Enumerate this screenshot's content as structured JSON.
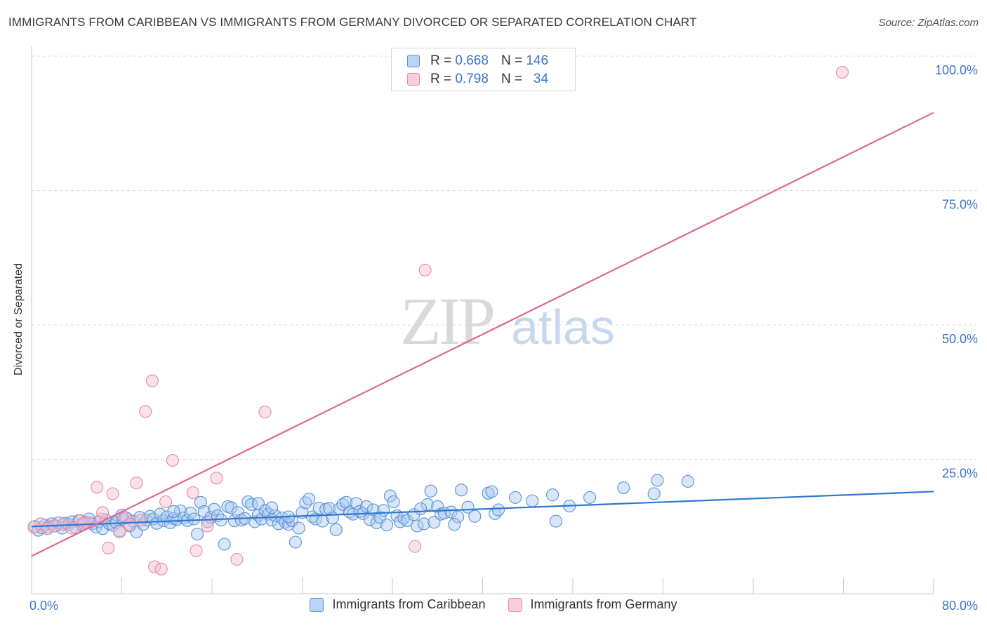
{
  "title": "IMMIGRANTS FROM CARIBBEAN VS IMMIGRANTS FROM GERMANY DIVORCED OR SEPARATED CORRELATION CHART",
  "source": "Source: ZipAtlas.com",
  "watermark": {
    "zip": "ZIP",
    "atlas": "atlas"
  },
  "colors": {
    "blue_fill": "#a9c8f0",
    "blue_stroke": "#5b93d6",
    "blue_line": "#2f78d0",
    "pink_fill": "#f6bfd0",
    "pink_stroke": "#e889a8",
    "pink_line": "#e0688f",
    "axis_text": "#3b73c8"
  },
  "legend_top": [
    {
      "r_label": "R =",
      "r_value": "0.668",
      "n_label": "N =",
      "n_value": "146"
    },
    {
      "r_label": "R =",
      "r_value": "0.798",
      "n_label": "N =",
      "n_value": "34"
    }
  ],
  "legend_bottom": [
    {
      "label": "Immigrants from Caribbean"
    },
    {
      "label": "Immigrants from Germany"
    }
  ],
  "chart_data": {
    "type": "scatter",
    "title": "IMMIGRANTS FROM CARIBBEAN VS IMMIGRANTS FROM GERMANY DIVORCED OR SEPARATED CORRELATION CHART",
    "xlabel": "",
    "ylabel": "Divorced or Separated",
    "xlim": [
      0,
      80
    ],
    "ylim": [
      0,
      100
    ],
    "x_tick_labels": [
      "0.0%",
      "80.0%"
    ],
    "y_ticks": [
      25,
      50,
      75,
      100
    ],
    "y_tick_labels": [
      "25.0%",
      "50.0%",
      "75.0%",
      "100.0%"
    ],
    "grid": "horizontal dashed",
    "legend_position": "top-center",
    "series": [
      {
        "name": "Immigrants from Caribbean",
        "color": "#a9c8f0",
        "trend": {
          "x": [
            0,
            80
          ],
          "y": [
            12.5,
            19.0
          ]
        },
        "points": [
          [
            0.3,
            12.5
          ],
          [
            0.6,
            11.8
          ],
          [
            0.9,
            12.3
          ],
          [
            1.2,
            12.8
          ],
          [
            1.5,
            12.4
          ],
          [
            1.8,
            13.0
          ],
          [
            2.1,
            12.6
          ],
          [
            2.4,
            13.2
          ],
          [
            2.7,
            12.2
          ],
          [
            3.0,
            13.1
          ],
          [
            3.3,
            12.9
          ],
          [
            3.6,
            13.4
          ],
          [
            3.9,
            12.3
          ],
          [
            4.2,
            13.6
          ],
          [
            4.5,
            12.8
          ],
          [
            4.8,
            13.3
          ],
          [
            5.1,
            13.9
          ],
          [
            5.4,
            13.0
          ],
          [
            5.7,
            12.4
          ],
          [
            6.0,
            13.4
          ],
          [
            6.3,
            12.1
          ],
          [
            6.6,
            13.7
          ],
          [
            6.9,
            13.0
          ],
          [
            7.2,
            12.7
          ],
          [
            7.5,
            13.2
          ],
          [
            7.8,
            11.7
          ],
          [
            8.1,
            13.9
          ],
          [
            8.4,
            14.1
          ],
          [
            8.7,
            12.6
          ],
          [
            9.0,
            13.5
          ],
          [
            9.3,
            11.5
          ],
          [
            9.6,
            14.2
          ],
          [
            9.9,
            12.9
          ],
          [
            10.2,
            13.7
          ],
          [
            10.5,
            14.4
          ],
          [
            10.8,
            13.9
          ],
          [
            11.1,
            13.1
          ],
          [
            11.4,
            14.8
          ],
          [
            11.7,
            13.6
          ],
          [
            12.0,
            14.3
          ],
          [
            12.3,
            13.2
          ],
          [
            12.6,
            14.0
          ],
          [
            12.9,
            13.8
          ],
          [
            13.2,
            15.4
          ],
          [
            13.5,
            14.1
          ],
          [
            13.8,
            13.6
          ],
          [
            14.1,
            15.0
          ],
          [
            14.4,
            13.9
          ],
          [
            14.7,
            11.1
          ],
          [
            15.0,
            17.0
          ],
          [
            15.3,
            15.3
          ],
          [
            15.6,
            13.4
          ],
          [
            15.9,
            14.2
          ],
          [
            16.2,
            15.7
          ],
          [
            16.5,
            14.5
          ],
          [
            16.8,
            13.7
          ],
          [
            17.1,
            9.2
          ],
          [
            17.4,
            16.2
          ],
          [
            17.7,
            16.0
          ],
          [
            18.0,
            13.6
          ],
          [
            18.3,
            15.1
          ],
          [
            18.6,
            13.7
          ],
          [
            18.9,
            14.0
          ],
          [
            19.2,
            17.1
          ],
          [
            19.5,
            16.6
          ],
          [
            19.8,
            13.4
          ],
          [
            20.1,
            14.6
          ],
          [
            20.4,
            13.9
          ],
          [
            20.7,
            15.5
          ],
          [
            21.0,
            14.8
          ],
          [
            21.3,
            13.7
          ],
          [
            21.6,
            14.5
          ],
          [
            21.9,
            13.0
          ],
          [
            22.2,
            14.1
          ],
          [
            22.5,
            13.3
          ],
          [
            22.8,
            12.9
          ],
          [
            23.1,
            13.6
          ],
          [
            23.4,
            9.6
          ],
          [
            23.7,
            12.2
          ],
          [
            24.0,
            15.1
          ],
          [
            24.3,
            16.9
          ],
          [
            24.6,
            17.6
          ],
          [
            24.9,
            14.3
          ],
          [
            25.2,
            13.9
          ],
          [
            25.5,
            15.9
          ],
          [
            25.8,
            13.5
          ],
          [
            26.1,
            15.7
          ],
          [
            26.4,
            15.9
          ],
          [
            26.7,
            14.1
          ],
          [
            27.0,
            11.9
          ],
          [
            27.3,
            15.8
          ],
          [
            27.6,
            16.6
          ],
          [
            27.9,
            17.0
          ],
          [
            28.2,
            15.2
          ],
          [
            28.5,
            14.8
          ],
          [
            28.8,
            16.8
          ],
          [
            29.1,
            15.3
          ],
          [
            29.4,
            14.9
          ],
          [
            29.7,
            16.2
          ],
          [
            30.0,
            13.8
          ],
          [
            30.3,
            15.6
          ],
          [
            30.6,
            13.2
          ],
          [
            30.9,
            14.2
          ],
          [
            31.2,
            15.5
          ],
          [
            31.8,
            18.2
          ],
          [
            32.1,
            17.1
          ],
          [
            32.4,
            14.5
          ],
          [
            32.7,
            13.4
          ],
          [
            33.0,
            14.1
          ],
          [
            33.3,
            13.6
          ],
          [
            33.9,
            14.7
          ],
          [
            34.2,
            12.6
          ],
          [
            34.8,
            13.0
          ],
          [
            35.1,
            16.6
          ],
          [
            35.4,
            19.1
          ],
          [
            35.7,
            13.3
          ],
          [
            36.0,
            16.2
          ],
          [
            36.3,
            14.8
          ],
          [
            36.6,
            15.0
          ],
          [
            37.2,
            15.2
          ],
          [
            37.8,
            14.3
          ],
          [
            38.1,
            19.3
          ],
          [
            38.7,
            16.1
          ],
          [
            40.5,
            18.7
          ],
          [
            40.8,
            19.0
          ],
          [
            41.1,
            14.9
          ],
          [
            41.4,
            15.6
          ],
          [
            42.9,
            17.9
          ],
          [
            44.4,
            17.3
          ],
          [
            46.2,
            18.4
          ],
          [
            46.5,
            13.5
          ],
          [
            47.7,
            16.3
          ],
          [
            49.5,
            17.9
          ],
          [
            52.5,
            19.7
          ],
          [
            55.2,
            18.6
          ],
          [
            55.5,
            21.1
          ],
          [
            58.2,
            20.9
          ],
          [
            8.0,
            14.6
          ],
          [
            12.6,
            15.3
          ],
          [
            34.5,
            15.8
          ],
          [
            37.5,
            12.9
          ],
          [
            39.3,
            14.4
          ],
          [
            20.1,
            16.8
          ],
          [
            21.3,
            16.0
          ],
          [
            22.8,
            14.3
          ],
          [
            31.5,
            12.8
          ]
        ]
      },
      {
        "name": "Immigrants from Germany",
        "color": "#f6bfd0",
        "trend": {
          "x": [
            0,
            80
          ],
          "y": [
            7.0,
            89.5
          ]
        },
        "points": [
          [
            0.2,
            12.4
          ],
          [
            0.8,
            13.0
          ],
          [
            1.4,
            12.1
          ],
          [
            2.0,
            12.6
          ],
          [
            2.8,
            12.9
          ],
          [
            3.6,
            12.2
          ],
          [
            4.3,
            13.6
          ],
          [
            5.1,
            13.2
          ],
          [
            5.8,
            19.8
          ],
          [
            6.2,
            13.9
          ],
          [
            6.3,
            15.1
          ],
          [
            6.8,
            8.5
          ],
          [
            7.2,
            18.6
          ],
          [
            7.8,
            11.5
          ],
          [
            8.3,
            14.1
          ],
          [
            8.7,
            12.9
          ],
          [
            9.3,
            20.6
          ],
          [
            9.7,
            13.7
          ],
          [
            10.1,
            33.9
          ],
          [
            10.7,
            39.6
          ],
          [
            10.9,
            5.0
          ],
          [
            11.5,
            4.6
          ],
          [
            11.9,
            17.1
          ],
          [
            12.5,
            24.8
          ],
          [
            14.3,
            18.8
          ],
          [
            14.6,
            8.0
          ],
          [
            15.6,
            12.6
          ],
          [
            16.4,
            21.5
          ],
          [
            18.2,
            6.4
          ],
          [
            20.7,
            33.8
          ],
          [
            34.9,
            60.2
          ],
          [
            34.0,
            8.8
          ],
          [
            71.9,
            97.0
          ],
          [
            4.6,
            13.1
          ]
        ]
      }
    ]
  }
}
